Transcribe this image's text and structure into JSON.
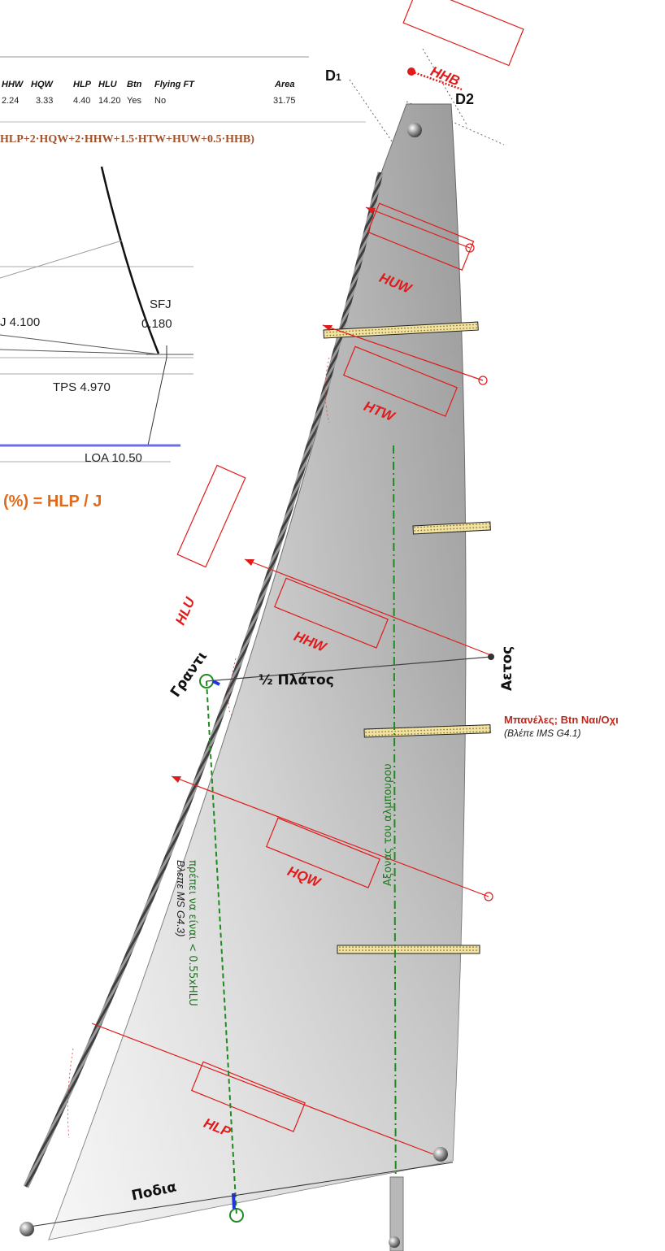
{
  "table": {
    "headers": [
      "HHW",
      "HQW",
      "HLP",
      "HLU",
      "Btn",
      "Flying FT",
      "Area"
    ],
    "values": [
      "2.24",
      "3.33",
      "4.40",
      "14.20",
      "Yes",
      "No",
      "31.75"
    ]
  },
  "formula": "HLP+2·HQW+2·HHW+1.5·HTW+HUW+0.5·HHB)",
  "dimensions": {
    "j": "J 4.100",
    "sfj_label": "SFJ",
    "sfj_value": "0.180",
    "tps": "TPS 4.970",
    "loa": "LOA 10.50"
  },
  "ratio_formula": "(%) = HLP / J",
  "sail": {
    "d1": "D1",
    "d1_main": "D",
    "d1_sub": "1",
    "d2": "D2",
    "hhb": "HHB",
    "huw": "HUW",
    "htw": "HTW",
    "hhw": "HHW",
    "hqw": "HQW",
    "hlp": "HLP",
    "hlu": "HLU",
    "luff": "Γραντι",
    "leech": "Αετος",
    "foot": "Ποδια",
    "half_width": "½ Πλάτος",
    "battens_note": "Μπανέλες;  Btn Ναι/Οχι",
    "battens_ref": "(Βλέπε IMS G4.1)",
    "mast_axis": "Αξονας του αλμπουρου",
    "constraint_line1": "πρέπει να είναι < 0.55xHLU",
    "constraint_line2": "Βλεπε MS G4.3)"
  },
  "colors": {
    "measurement_red": "#e01b1b",
    "formula_brown": "#a0522d",
    "ratio_orange": "#e06a1a",
    "green_dashed": "#1f8a1f",
    "batten_yellow": "#f3e3a0"
  }
}
